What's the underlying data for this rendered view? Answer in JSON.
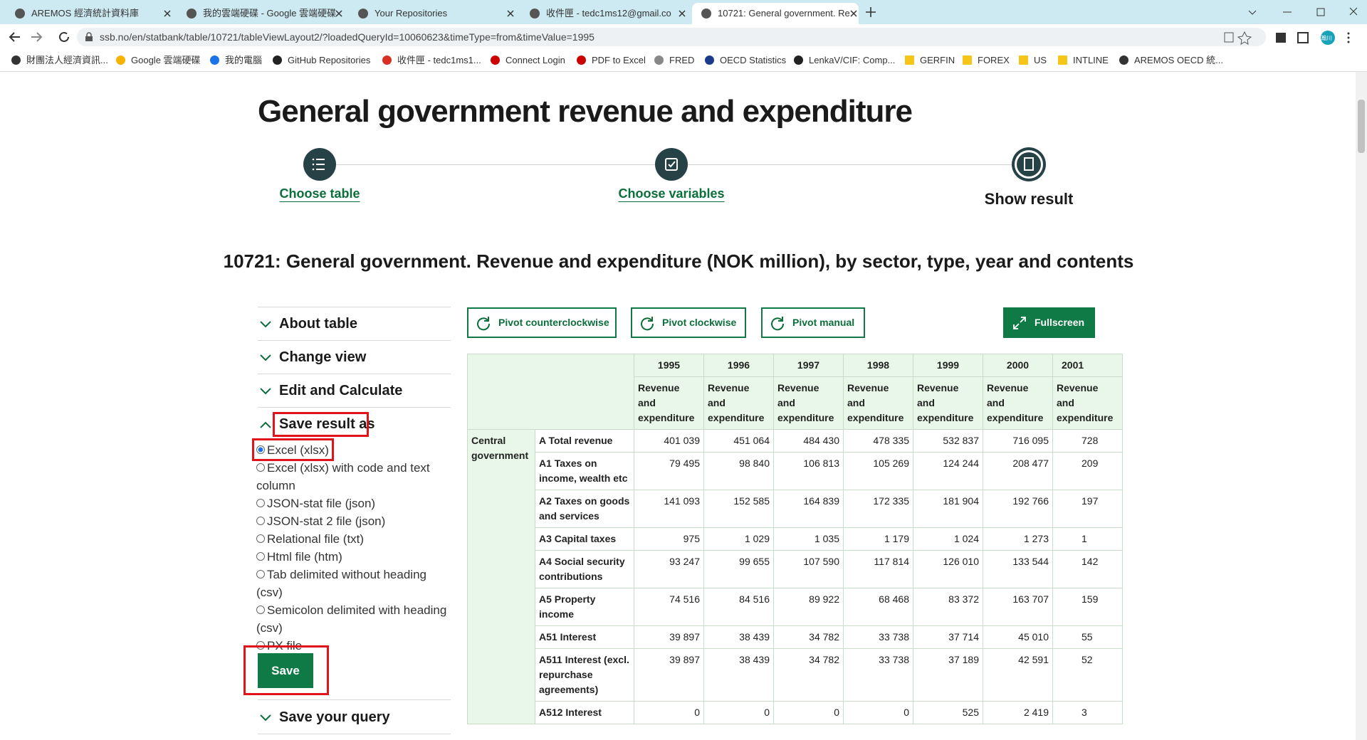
{
  "browser": {
    "tabs": [
      "AREMOS 經濟統計資料庫",
      "我的雲端硬碟 - Google 雲端硬碟",
      "Your Repositories",
      "收件匣 - tedc1ms12@gmail.co",
      "10721: General government. Re"
    ],
    "url": "ssb.no/en/statbank/table/10721/tableViewLayout2/?loadedQueryId=10060623&timeType=from&timeValue=1995",
    "profile": "瀚川",
    "bookmarks": [
      "財團法人經濟資訊...",
      "Google 雲端硬碟",
      "我的電腦",
      "GitHub Repositories",
      "收件匣 - tedc1ms1...",
      "Connect Login",
      "PDF to Excel",
      "FRED",
      "OECD Statistics",
      "LenkaV/CIF: Comp...",
      "GERFIN",
      "FOREX",
      "US",
      "INTLINE",
      "AREMOS OECD 統..."
    ]
  },
  "page": {
    "title": "General government revenue and expenditure",
    "steps": [
      "Choose table",
      "Choose variables",
      "Show result"
    ],
    "table_title": "10721: General government. Revenue and expenditure (NOK million), by sector, type, year and contents",
    "sidebar": {
      "sections": [
        "About table",
        "Change view",
        "Edit and Calculate",
        "Save result as"
      ],
      "options": [
        "Excel (xlsx)",
        "Excel (xlsx) with code and text column",
        "JSON-stat file (json)",
        "JSON-stat 2 file (json)",
        "Relational file (txt)",
        "Html file (htm)",
        "Tab delimited without heading (csv)",
        "Semicolon delimited with heading (csv)",
        "PX file"
      ],
      "save_button": "Save",
      "save_query": "Save your query"
    },
    "buttons": [
      "Pivot counterclockwise",
      "Pivot clockwise",
      "Pivot manual",
      "Fullscreen"
    ],
    "table": {
      "years": [
        "1995",
        "1996",
        "1997",
        "1998",
        "1999",
        "2000",
        "2001"
      ],
      "contents": "Revenue and expenditure",
      "sector": "Central government",
      "rows": [
        [
          "A Total revenue",
          "401 039",
          "451 064",
          "484 430",
          "478 335",
          "532 837",
          "716 095",
          "728"
        ],
        [
          "A1 Taxes on income, wealth etc",
          "79 495",
          "98 840",
          "106 813",
          "105 269",
          "124 244",
          "208 477",
          "209"
        ],
        [
          "A2 Taxes on goods and services",
          "141 093",
          "152 585",
          "164 839",
          "172 335",
          "181 904",
          "192 766",
          "197"
        ],
        [
          "A3 Capital taxes",
          "975",
          "1 029",
          "1 035",
          "1 179",
          "1 024",
          "1 273",
          "1"
        ],
        [
          "A4 Social security contributions",
          "93 247",
          "99 655",
          "107 590",
          "117 814",
          "126 010",
          "133 544",
          "142"
        ],
        [
          "A5 Property income",
          "74 516",
          "84 516",
          "89 922",
          "68 468",
          "83 372",
          "163 707",
          "159"
        ],
        [
          "A51 Interest",
          "39 897",
          "38 439",
          "34 782",
          "33 738",
          "37 714",
          "45 010",
          "55"
        ],
        [
          "A511 Interest (excl. repurchase agreements)",
          "39 897",
          "38 439",
          "34 782",
          "33 738",
          "37 189",
          "42 591",
          "52"
        ],
        [
          "A512 Interest",
          "0",
          "0",
          "0",
          "0",
          "525",
          "2 419",
          "3"
        ]
      ]
    }
  }
}
